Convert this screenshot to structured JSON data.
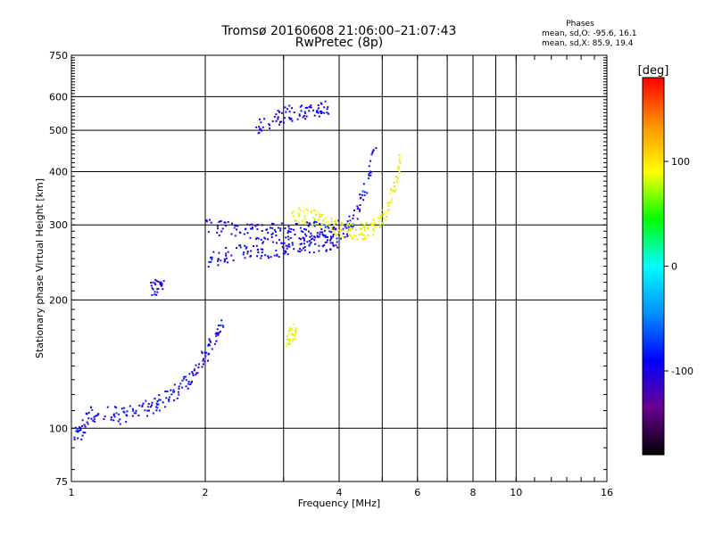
{
  "chart_data": {
    "type": "scatter",
    "title": "Tromsø 20160608 21:06:00–21:07:43",
    "subtitle": "RwPretec (8p)",
    "xlabel": "Frequency [MHz]",
    "ylabel": "Stationary phase Virtual Height [km]",
    "x_scale": "log",
    "y_scale": "log",
    "xlim": [
      1,
      16
    ],
    "ylim": [
      75,
      750
    ],
    "x_ticks": [
      1,
      2,
      4,
      6,
      8,
      10,
      16
    ],
    "y_ticks": [
      75,
      100,
      200,
      300,
      400,
      500,
      600,
      750
    ],
    "grid": true,
    "colorbar": {
      "label": "[deg]",
      "range": [
        -180,
        180
      ],
      "ticks": [
        100,
        0,
        -100
      ],
      "colors": [
        "#000000",
        "#6a0090",
        "#0000ff",
        "#0090ff",
        "#00ffff",
        "#00ff00",
        "#ffff00",
        "#ff9000",
        "#ff0000"
      ]
    },
    "stats": {
      "label": "Phases",
      "o_label": "mean, sd,O:",
      "o_mean": -95.6,
      "o_sd": 16.1,
      "x_label": "mean, sd,X:",
      "x_mean": 85.9,
      "x_sd": 19.4
    },
    "series": [
      {
        "mode": "O",
        "phase_deg": -95,
        "traces": [
          {
            "x": [
              1.0,
              1.05,
              1.1,
              1.2,
              1.3,
              1.4,
              1.5,
              1.6,
              1.7,
              1.8,
              1.9,
              2.0,
              2.1,
              2.2
            ],
            "y": [
              96,
              99,
              108,
              110,
              107,
              110,
              113,
              116,
              121,
              128,
              138,
              150,
              165,
              182
            ]
          },
          {
            "x": [
              2.0,
              2.2,
              2.4,
              2.6,
              2.8,
              3.0,
              3.2,
              3.4,
              3.6,
              3.8,
              4.0
            ],
            "y": [
              300,
              294,
              291,
              290,
              290,
              291,
              292,
              293,
              294,
              296,
              295
            ]
          },
          {
            "x": [
              2.0,
              2.2,
              2.4,
              2.6,
              2.8,
              3.0,
              3.2,
              3.4,
              3.6,
              3.8,
              4.0,
              4.2,
              4.4,
              4.6,
              4.8
            ],
            "y": [
              250,
              255,
              260,
              262,
              264,
              266,
              268,
              270,
              272,
              274,
              280,
              300,
              330,
              380,
              450
            ]
          },
          {
            "x": [
              2.6,
              2.8,
              3.0,
              3.2,
              3.4,
              3.6,
              3.8
            ],
            "y": [
              510,
              530,
              545,
              555,
              560,
              565,
              575
            ]
          },
          {
            "x": [
              1.5,
              1.55,
              1.6
            ],
            "y": [
              213,
              215,
              217
            ]
          }
        ]
      },
      {
        "mode": "X",
        "phase_deg": 90,
        "traces": [
          {
            "x": [
              3.1,
              3.3,
              3.5,
              3.7,
              3.9,
              4.1,
              4.3,
              4.5,
              4.7,
              4.9,
              5.1,
              5.3,
              5.5
            ],
            "y": [
              318,
              315,
              312,
              306,
              298,
              292,
              289,
              291,
              296,
              305,
              325,
              370,
              460
            ]
          },
          {
            "x": [
              3.0,
              3.1,
              3.2
            ],
            "y": [
              160,
              166,
              170
            ]
          }
        ]
      }
    ]
  }
}
